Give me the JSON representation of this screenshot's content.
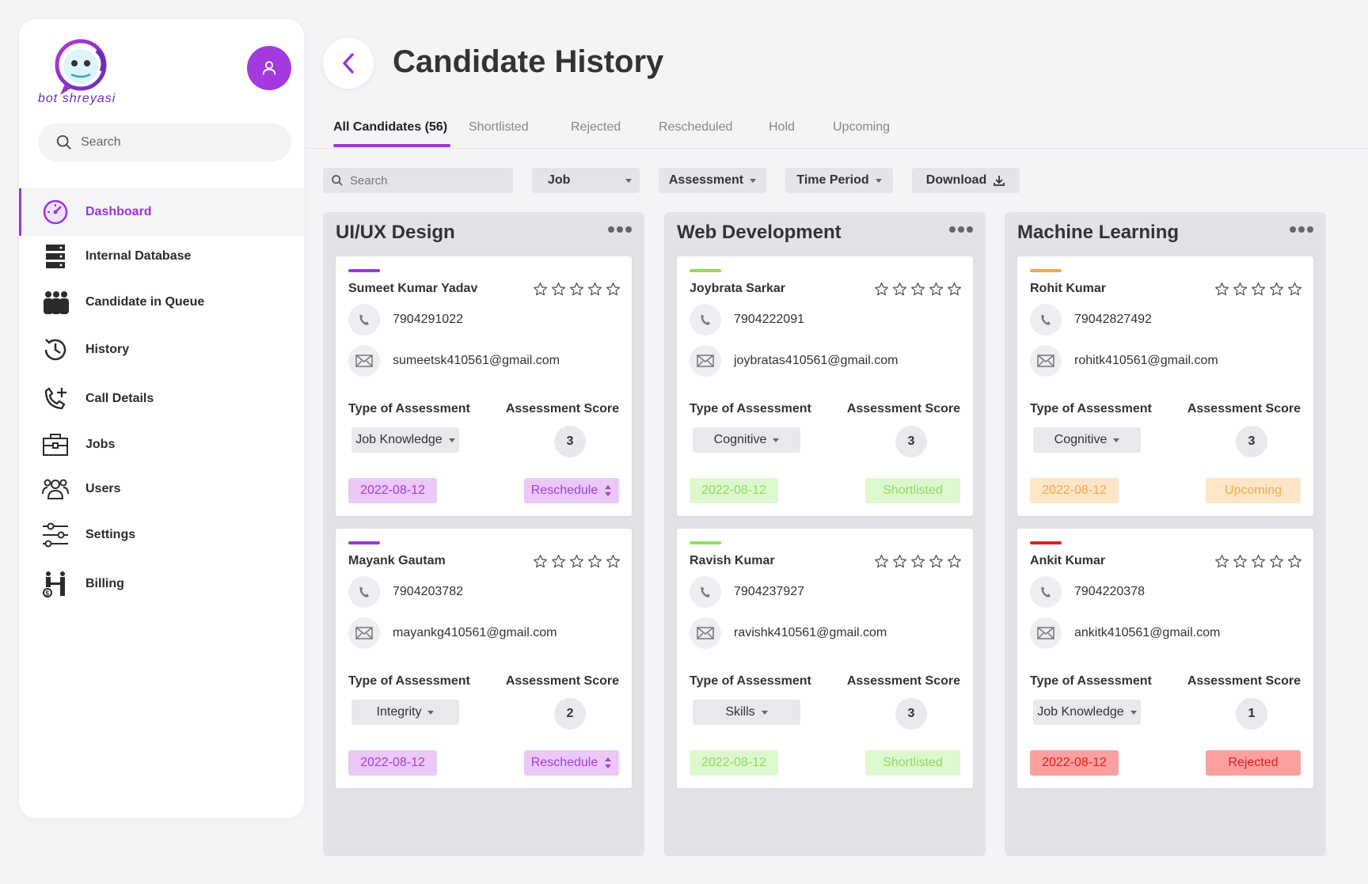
{
  "brand": {
    "logo_text": "bot shreyasi"
  },
  "sidebar": {
    "search_placeholder": "Search",
    "items": [
      {
        "label": "Dashboard",
        "icon": "dashboard-gauge-icon",
        "active": true
      },
      {
        "label": "Internal Database",
        "icon": "database-icon"
      },
      {
        "label": "Candidate in Queue",
        "icon": "queue-people-icon"
      },
      {
        "label": "History",
        "icon": "clock-history-icon"
      },
      {
        "label": "Call Details",
        "icon": "phone-add-icon"
      },
      {
        "label": "Jobs",
        "icon": "briefcase-icon"
      },
      {
        "label": "Users",
        "icon": "users-icon"
      },
      {
        "label": "Settings",
        "icon": "sliders-icon"
      },
      {
        "label": "Billing",
        "icon": "billing-icon"
      }
    ]
  },
  "header": {
    "title": "Candidate History"
  },
  "tabs": [
    "All Candidates (56)",
    "Shortlisted",
    "Rejected",
    "Rescheduled",
    "Hold",
    "Upcoming"
  ],
  "filters": {
    "search_placeholder": "Search",
    "job": "Job",
    "assessment": "Assessment",
    "time_period": "Time Period",
    "download": "Download"
  },
  "labels": {
    "type": "Type of Assessment",
    "score": "Assessment Score"
  },
  "colors": {
    "accent": "#9b36d8",
    "reschedule_bg": "#ebc8f8",
    "reschedule_fg": "#a43fd6",
    "shortlisted_bg": "#ddf8cf",
    "shortlisted_fg": "#8fdc5e",
    "upcoming_bg": "#fde6c7",
    "upcoming_fg": "#f2a94d",
    "rejected_bg": "#fb9f9f",
    "rejected_fg": "#e02020"
  },
  "columns": [
    {
      "title": "UI/UX Design",
      "cards": [
        {
          "name": "Sumeet Kumar Yadav",
          "phone": "7904291022",
          "email": "sumeetsk410561@gmail.com",
          "assessment": "Job Knowledge",
          "score": "3",
          "date": "2022-08-12",
          "status": "Reschedule",
          "tone": "reschedule"
        },
        {
          "name": "Mayank Gautam",
          "phone": "7904203782",
          "email": "mayankg410561@gmail.com",
          "assessment": "Integrity",
          "score": "2",
          "date": "2022-08-12",
          "status": "Reschedule",
          "tone": "reschedule"
        }
      ]
    },
    {
      "title": "Web Development",
      "cards": [
        {
          "name": "Joybrata Sarkar",
          "phone": "7904222091",
          "email": "joybratas410561@gmail.com",
          "assessment": "Cognitive",
          "score": "3",
          "date": "2022-08-12",
          "status": "Shortlisted",
          "tone": "shortlisted"
        },
        {
          "name": "Ravish Kumar",
          "phone": "7904237927",
          "email": "ravishk410561@gmail.com",
          "assessment": "Skills",
          "score": "3",
          "date": "2022-08-12",
          "status": "Shortlisted",
          "tone": "shortlisted"
        }
      ]
    },
    {
      "title": "Machine Learning",
      "cards": [
        {
          "name": "Rohit Kumar",
          "phone": "79042827492",
          "email": "rohitk410561@gmail.com",
          "assessment": "Cognitive",
          "score": "3",
          "date": "2022-08-12",
          "status": "Upcoming",
          "tone": "upcoming"
        },
        {
          "name": "Ankit Kumar",
          "phone": "7904220378",
          "email": "ankitk410561@gmail.com",
          "assessment": "Job Knowledge",
          "score": "1",
          "date": "2022-08-12",
          "status": "Rejected",
          "tone": "rejected"
        }
      ]
    }
  ]
}
